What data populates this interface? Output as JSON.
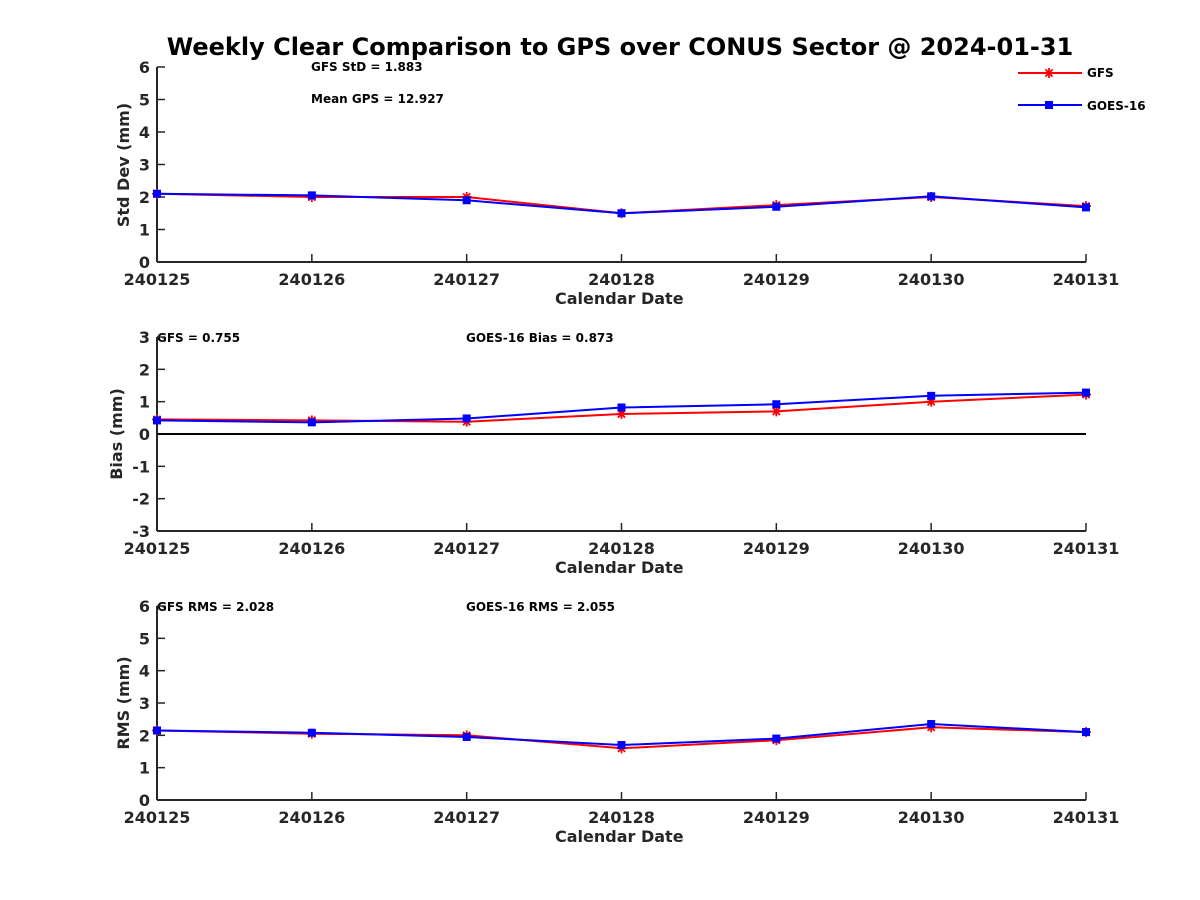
{
  "title": "Weekly Clear Comparison to GPS over CONUS Sector @ 2024-01-31",
  "legend": {
    "placement": "top-right",
    "entries": [
      {
        "label": "GFS",
        "color": "#ff0000",
        "marker": "asterisk"
      },
      {
        "label": "GOES-16",
        "color": "#0000ff",
        "marker": "square"
      }
    ]
  },
  "chart_data": [
    {
      "type": "line",
      "xlabel": "Calendar Date",
      "ylabel": "Std Dev (mm)",
      "categories": [
        "240125",
        "240126",
        "240127",
        "240128",
        "240129",
        "240130",
        "240131"
      ],
      "ylim": [
        0,
        6
      ],
      "yticks": [
        "0",
        "1",
        "2",
        "3",
        "4",
        "5",
        "6"
      ],
      "zero_line": false,
      "annotations": [
        {
          "text": "GFS StD = 1.883"
        },
        {
          "text": "Mean GPS = 12.927"
        }
      ],
      "series": [
        {
          "name": "GFS",
          "color": "#ff0000",
          "marker": "asterisk",
          "values": [
            2.1,
            2.0,
            2.0,
            1.5,
            1.75,
            2.0,
            1.72
          ]
        },
        {
          "name": "GOES-16",
          "color": "#0000ff",
          "marker": "square",
          "values": [
            2.1,
            2.05,
            1.9,
            1.5,
            1.7,
            2.02,
            1.68
          ]
        }
      ]
    },
    {
      "type": "line",
      "xlabel": "Calendar Date",
      "ylabel": "Bias (mm)",
      "categories": [
        "240125",
        "240126",
        "240127",
        "240128",
        "240129",
        "240130",
        "240131"
      ],
      "ylim": [
        -3,
        3
      ],
      "yticks": [
        "-3",
        "-2",
        "-1",
        "0",
        "1",
        "2",
        "3"
      ],
      "zero_line": true,
      "annotations": [
        {
          "text": "GFS = 0.755"
        },
        {
          "text": "GOES-16 Bias  = 0.873"
        }
      ],
      "series": [
        {
          "name": "GFS",
          "color": "#ff0000",
          "marker": "asterisk",
          "values": [
            0.45,
            0.42,
            0.38,
            0.62,
            0.7,
            1.0,
            1.22
          ]
        },
        {
          "name": "GOES-16",
          "color": "#0000ff",
          "marker": "square",
          "values": [
            0.42,
            0.36,
            0.48,
            0.82,
            0.92,
            1.18,
            1.28
          ]
        }
      ]
    },
    {
      "type": "line",
      "xlabel": "Calendar Date",
      "ylabel": "RMS (mm)",
      "categories": [
        "240125",
        "240126",
        "240127",
        "240128",
        "240129",
        "240130",
        "240131"
      ],
      "ylim": [
        0,
        6
      ],
      "yticks": [
        "0",
        "1",
        "2",
        "3",
        "4",
        "5",
        "6"
      ],
      "zero_line": false,
      "annotations": [
        {
          "text": "GFS RMS = 2.028"
        },
        {
          "text": "GOES-16 RMS = 2.055"
        }
      ],
      "series": [
        {
          "name": "GFS",
          "color": "#ff0000",
          "marker": "asterisk",
          "values": [
            2.15,
            2.05,
            2.0,
            1.6,
            1.85,
            2.25,
            2.1
          ]
        },
        {
          "name": "GOES-16",
          "color": "#0000ff",
          "marker": "square",
          "values": [
            2.15,
            2.08,
            1.95,
            1.7,
            1.9,
            2.35,
            2.1
          ]
        }
      ]
    }
  ]
}
